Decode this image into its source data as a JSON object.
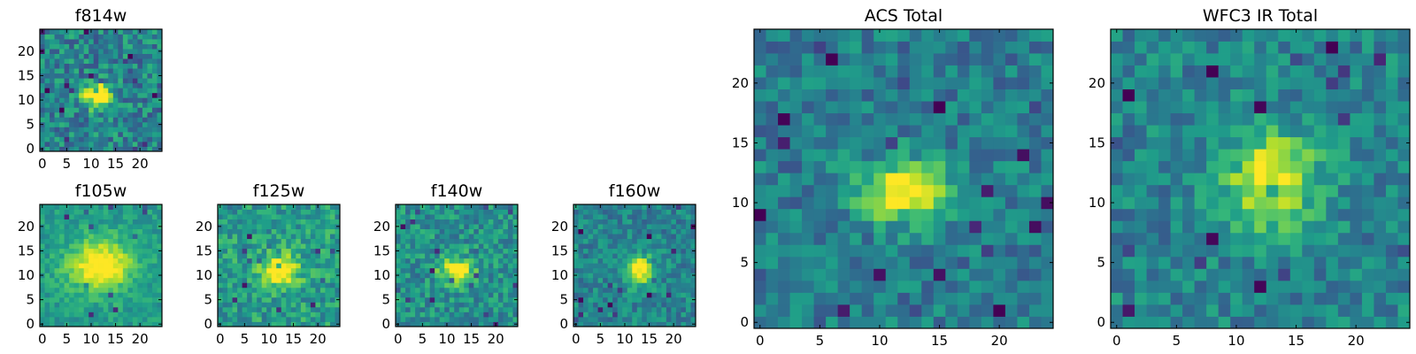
{
  "chart_data": [
    {
      "type": "heatmap",
      "title": "f814w",
      "size": 25,
      "xticks": [
        0,
        5,
        10,
        15,
        20
      ],
      "yticks": [
        0,
        5,
        10,
        15,
        20
      ],
      "colormap": "viridis",
      "peak": [
        11,
        11
      ],
      "spread": [
        2.2,
        1.6
      ],
      "amplitude": 0.85,
      "background": 0.45,
      "noise": 0.42,
      "seed": 3
    },
    {
      "type": "heatmap",
      "title": "f105w",
      "size": 25,
      "xticks": [
        0,
        5,
        10,
        15,
        20
      ],
      "yticks": [
        0,
        5,
        10,
        15,
        20
      ],
      "colormap": "viridis",
      "peak": [
        12,
        12
      ],
      "spread": [
        4.5,
        3.5
      ],
      "amplitude": 0.55,
      "background": 0.55,
      "noise": 0.22,
      "seed": 11
    },
    {
      "type": "heatmap",
      "title": "f125w",
      "size": 25,
      "xticks": [
        0,
        5,
        10,
        15,
        20
      ],
      "yticks": [
        0,
        5,
        10,
        15,
        20
      ],
      "colormap": "viridis",
      "peak": [
        12,
        11
      ],
      "spread": [
        3.0,
        2.4
      ],
      "amplitude": 0.5,
      "background": 0.55,
      "noise": 0.35,
      "seed": 23
    },
    {
      "type": "heatmap",
      "title": "f140w",
      "size": 25,
      "xticks": [
        0,
        5,
        10,
        15,
        20
      ],
      "yticks": [
        0,
        5,
        10,
        15,
        20
      ],
      "colormap": "viridis",
      "peak": [
        12,
        11
      ],
      "spread": [
        2.4,
        1.8
      ],
      "amplitude": 0.6,
      "background": 0.5,
      "noise": 0.35,
      "seed": 37
    },
    {
      "type": "heatmap",
      "title": "f160w",
      "size": 25,
      "xticks": [
        0,
        5,
        10,
        15,
        20
      ],
      "yticks": [
        0,
        5,
        10,
        15,
        20
      ],
      "colormap": "viridis",
      "peak": [
        13,
        11
      ],
      "spread": [
        1.8,
        2.2
      ],
      "amplitude": 0.65,
      "background": 0.45,
      "noise": 0.3,
      "seed": 51
    },
    {
      "type": "heatmap",
      "title": "ACS Total",
      "size": 25,
      "xticks": [
        0,
        5,
        10,
        15,
        20
      ],
      "yticks": [
        0,
        5,
        10,
        15,
        20
      ],
      "colormap": "viridis",
      "peak": [
        12,
        11
      ],
      "spread": [
        2.6,
        1.8
      ],
      "amplitude": 0.6,
      "background": 0.42,
      "noise": 0.32,
      "seed": 71
    },
    {
      "type": "heatmap",
      "title": "WFC3 IR Total",
      "size": 25,
      "xticks": [
        0,
        5,
        10,
        15,
        20
      ],
      "yticks": [
        0,
        5,
        10,
        15,
        20
      ],
      "colormap": "viridis",
      "peak": [
        13,
        12
      ],
      "spread": [
        2.6,
        2.8
      ],
      "amplitude": 0.55,
      "background": 0.45,
      "noise": 0.32,
      "seed": 89
    }
  ]
}
